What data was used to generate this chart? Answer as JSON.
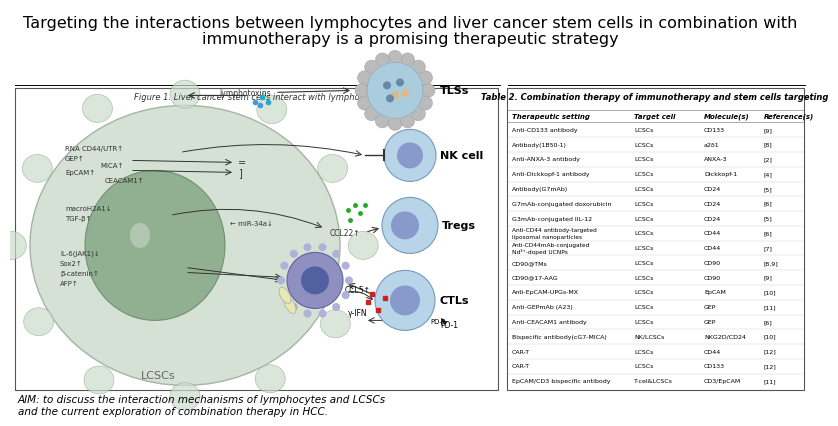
{
  "title_line1": "Targeting the interactions between lymphocytes and liver cancer stem cells in combination with",
  "title_line2": "immunotherapy is a promising therapeutic strategy",
  "title_fontsize": 11.5,
  "figure_label": "Figure 1. Liver cancer stem cells interact with lymphocytes",
  "table_title": "Table 2. Combination therapy of immunotherapy and stem cells targeting",
  "table_headers": [
    "Therapeutic setting",
    "Target cell",
    "Molecule(s)",
    "Reference(s)"
  ],
  "table_rows": [
    [
      "Anti-CD133 antibody",
      "LCSCs",
      "CD133",
      "[9]"
    ],
    [
      "Antibody(1B50-1)",
      "LCSCs",
      "a2δ1",
      "[8]"
    ],
    [
      "Anti-ANXA-3 antibody",
      "LCSCs",
      "ANXA-3",
      "[2]"
    ],
    [
      "Anti-Dickkopf-1 antibody",
      "LCSCs",
      "Dickkopf-1",
      "[4]"
    ],
    [
      "Antibody(G7mAb)",
      "LCSCs",
      "CD24",
      "[5]"
    ],
    [
      "G7mAb-conjugated doxorubicin",
      "LCSCs",
      "CD24",
      "[6]"
    ],
    [
      "G3mAb-conjugated IIL-12",
      "LCSCs",
      "CD24",
      "[5]"
    ],
    [
      "Anti-CD44 antibody-targeted\nliposomal nanoparticles",
      "LCSCs",
      "CD44",
      "[6]"
    ],
    [
      "Anti-CD44mAb-conjugated\nNd³⁺-doped UCNPs",
      "LCSCs",
      "CD44",
      "[7]"
    ],
    [
      "CD90@TMs",
      "LCSCs",
      "CD90",
      "[8,9]"
    ],
    [
      "CD90@17-AAG",
      "LCSCs",
      "CD90",
      "[9]"
    ],
    [
      "Anti-EpCAM-UPGs-MX",
      "LCSCs",
      "EpCAM",
      "[10]"
    ],
    [
      "Anti-GEPmAb (A23)",
      "LCSCs",
      "GEP",
      "[11]"
    ],
    [
      "Anti-CEACAM1 antibody",
      "LCSCs",
      "GEP",
      "[6]"
    ],
    [
      "Bispecific antibody(cG7-MICA)",
      "NK/LCSCs",
      "NKG2D/CD24",
      "[10]"
    ],
    [
      "CAR-T",
      "LCSCs",
      "CD44",
      "[12]"
    ],
    [
      "CAR-T",
      "LCSCs",
      "CD133",
      "[12]"
    ],
    [
      "EpCAM/CD3 bispecific antibody",
      "T-cel&LCSCs",
      "CD3/EpCAM",
      "[11]"
    ]
  ],
  "bottom_text": "AIM: to discuss the interaction mechanisms of lymphocytes and LCSCs\nand the current exploration of combination therapy in HCC.",
  "bg_color": "#ffffff",
  "lcsc_bg": "#cddccd",
  "lcsc_nucleus_color": "#8aab8a",
  "ctl_color": "#b8d4e8",
  "tregs_color": "#b8d4e8",
  "nk_color": "#b8d4e8",
  "tls_outer": "#c8c8c8",
  "tls_inner": "#b0d0e8",
  "center_cell_color": "#9090c0",
  "center_nucleus_color": "#5060a0"
}
